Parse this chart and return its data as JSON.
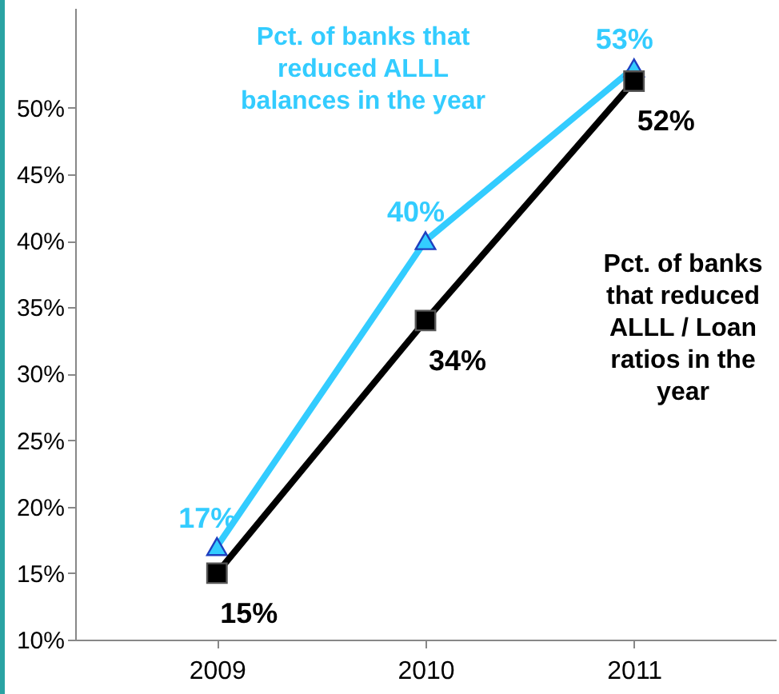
{
  "chart_data": {
    "type": "line",
    "categories": [
      "2009",
      "2010",
      "2011"
    ],
    "series": [
      {
        "name": "Pct. of banks that reduced ALLL balances in the year",
        "color": "#33ccff",
        "marker": "triangle",
        "values": [
          17,
          40,
          53
        ],
        "value_labels": [
          "17%",
          "40%",
          "53%"
        ]
      },
      {
        "name": "Pct. of banks that reduced ALLL / Loan ratios in the year",
        "color": "#000000",
        "marker": "square",
        "values": [
          15,
          34,
          52
        ],
        "value_labels": [
          "15%",
          "34%",
          "52%"
        ]
      }
    ],
    "ylim": [
      10,
      57.5
    ],
    "yticks": [
      {
        "value": 10,
        "label": "10%"
      },
      {
        "value": 15,
        "label": "15%"
      },
      {
        "value": 20,
        "label": "20%"
      },
      {
        "value": 25,
        "label": "25%"
      },
      {
        "value": 30,
        "label": "30%"
      },
      {
        "value": 35,
        "label": "35%"
      },
      {
        "value": 40,
        "label": "40%"
      },
      {
        "value": 45,
        "label": "45%"
      },
      {
        "value": 50,
        "label": "50%"
      }
    ],
    "grid": false,
    "line_style": "solid"
  }
}
